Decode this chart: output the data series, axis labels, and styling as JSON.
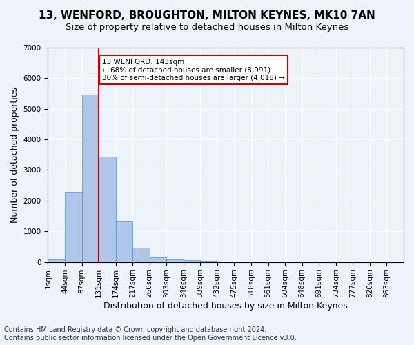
{
  "title": "13, WENFORD, BROUGHTON, MILTON KEYNES, MK10 7AN",
  "subtitle": "Size of property relative to detached houses in Milton Keynes",
  "xlabel": "Distribution of detached houses by size in Milton Keynes",
  "ylabel": "Number of detached properties",
  "footer_line1": "Contains HM Land Registry data © Crown copyright and database right 2024.",
  "footer_line2": "Contains public sector information licensed under the Open Government Licence v3.0.",
  "bin_labels": [
    "1sqm",
    "44sqm",
    "87sqm",
    "131sqm",
    "174sqm",
    "217sqm",
    "260sqm",
    "303sqm",
    "346sqm",
    "389sqm",
    "432sqm",
    "475sqm",
    "518sqm",
    "561sqm",
    "604sqm",
    "648sqm",
    "691sqm",
    "734sqm",
    "777sqm",
    "820sqm",
    "863sqm"
  ],
  "bar_values": [
    75,
    2280,
    5470,
    3450,
    1310,
    470,
    155,
    85,
    55,
    45,
    0,
    0,
    0,
    0,
    0,
    0,
    0,
    0,
    0,
    0,
    0
  ],
  "bar_color": "#aec6e8",
  "bar_edge_color": "#4a90d9",
  "property_line_bin": 3,
  "annotation_text": "13 WENFORD: 143sqm\n← 68% of detached houses are smaller (8,991)\n30% of semi-detached houses are larger (4,018) →",
  "annotation_box_color": "#ffffff",
  "annotation_box_edge": "#cc0000",
  "annotation_text_color": "#000000",
  "line_color": "#cc0000",
  "ylim": [
    0,
    7000
  ],
  "yticks": [
    0,
    1000,
    2000,
    3000,
    4000,
    5000,
    6000,
    7000
  ],
  "bg_color": "#eef2f9",
  "plot_bg_color": "#eef2f9",
  "grid_color": "#ffffff",
  "title_fontsize": 11,
  "subtitle_fontsize": 9.5,
  "axis_label_fontsize": 9,
  "tick_fontsize": 7.5,
  "footer_fontsize": 7
}
